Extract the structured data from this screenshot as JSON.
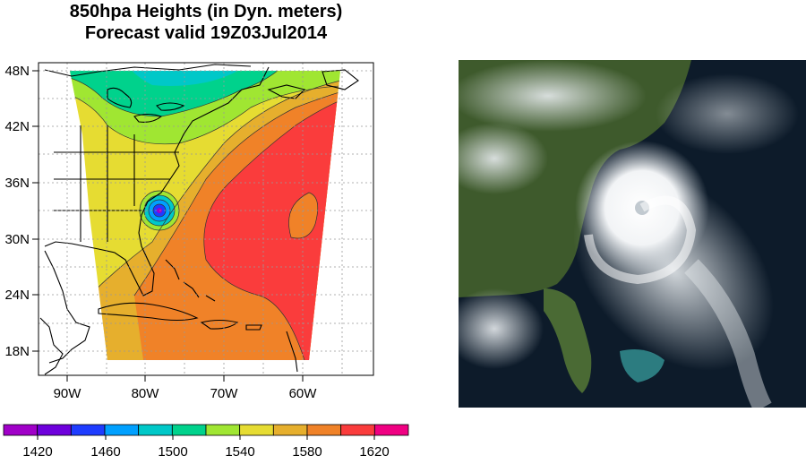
{
  "title": {
    "line1": "850hpa Heights (in Dyn. meters)",
    "line2": "Forecast valid 19Z03Jul2014"
  },
  "map": {
    "lat_labels": [
      "48N",
      "42N",
      "36N",
      "30N",
      "24N",
      "18N"
    ],
    "lon_labels": [
      "90W",
      "80W",
      "70W",
      "60W"
    ],
    "gridlines": true
  },
  "colorbar": {
    "tick_labels": [
      "1420",
      "1460",
      "1500",
      "1540",
      "1580",
      "1620"
    ],
    "colors": [
      "#a000c8",
      "#6e00dc",
      "#1e3cff",
      "#00a0ff",
      "#00c8c8",
      "#00d28c",
      "#a0e632",
      "#e6dc32",
      "#e6af2d",
      "#f08228",
      "#fa3c3c",
      "#f00082"
    ]
  },
  "satellite": {
    "description_colors": {
      "ocean": "#0c1a2a",
      "land": "#3e5a2c",
      "cloud": "#f4f6f8"
    }
  }
}
